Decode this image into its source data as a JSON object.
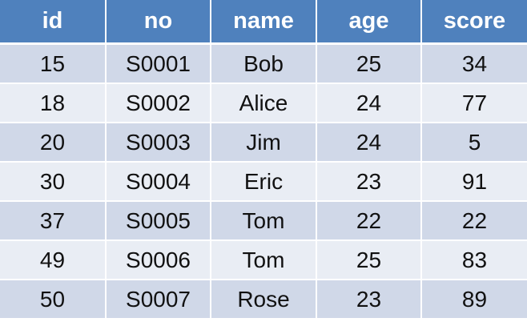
{
  "table": {
    "columns": [
      "id",
      "no",
      "name",
      "age",
      "score"
    ],
    "rows": [
      [
        "15",
        "S0001",
        "Bob",
        "25",
        "34"
      ],
      [
        "18",
        "S0002",
        "Alice",
        "24",
        "77"
      ],
      [
        "20",
        "S0003",
        "Jim",
        "24",
        "5"
      ],
      [
        "30",
        "S0004",
        "Eric",
        "23",
        "91"
      ],
      [
        "37",
        "S0005",
        "Tom",
        "22",
        "22"
      ],
      [
        "49",
        "S0006",
        "Tom",
        "25",
        "83"
      ],
      [
        "50",
        "S0007",
        "Rose",
        "23",
        "89"
      ]
    ]
  },
  "colors": {
    "header_bg": "#4f81bd",
    "header_text": "#ffffff",
    "row_odd_bg": "#d0d8e8",
    "row_even_bg": "#e9edf4",
    "cell_text": "#111111"
  }
}
